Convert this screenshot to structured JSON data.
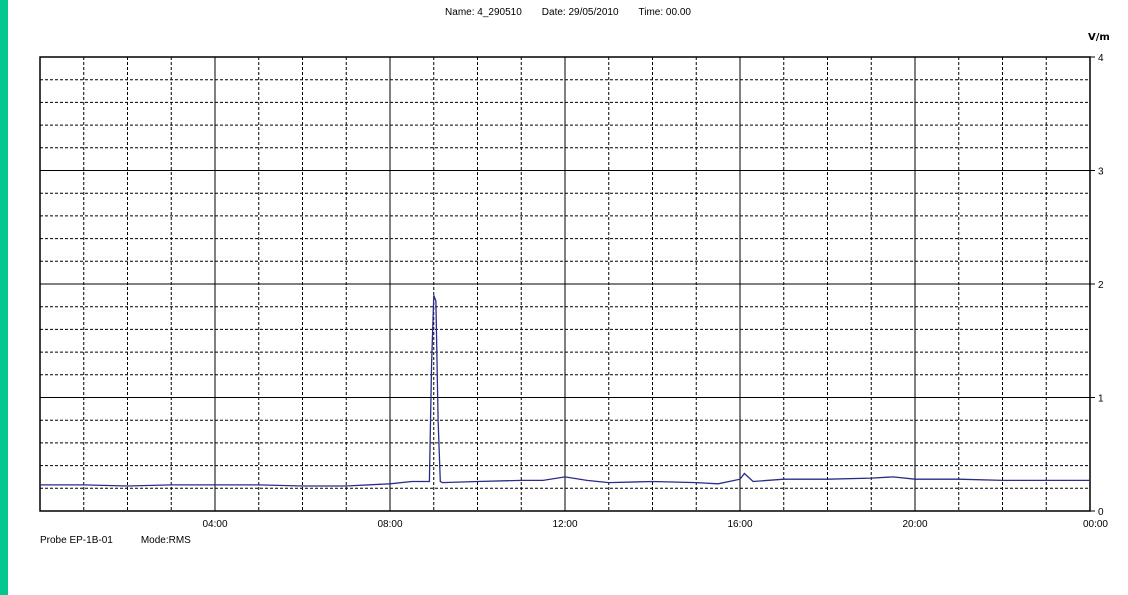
{
  "header": {
    "name": "Name: 4_290510",
    "date": "Date: 29/05/2010",
    "time": "Time: 00.00"
  },
  "footer": {
    "probe": "Probe EP-1B-01",
    "mode": "Mode:RMS"
  },
  "chart_data": {
    "type": "line",
    "title": "",
    "xlabel": "",
    "ylabel": "V/m",
    "xlim_hours": [
      0,
      24
    ],
    "ylim": [
      0,
      4
    ],
    "x_ticks": [
      "04:00",
      "08:00",
      "12:00",
      "16:00",
      "20:00",
      "00:00"
    ],
    "y_ticks": [
      "0",
      "1",
      "2",
      "3",
      "4"
    ],
    "grid": true,
    "series": [
      {
        "color": "#2b2b8a",
        "x_hours": [
          0,
          1,
          2,
          3,
          4,
          5,
          6,
          7,
          8,
          8.5,
          8.9,
          8.95,
          9.0,
          9.05,
          9.1,
          9.15,
          9.2,
          10,
          11,
          11.5,
          12,
          12.5,
          13,
          14,
          15,
          15.5,
          16,
          16.1,
          16.3,
          17,
          18,
          19,
          19.5,
          20,
          21,
          22,
          23,
          24
        ],
        "values": [
          0.23,
          0.23,
          0.22,
          0.23,
          0.23,
          0.23,
          0.22,
          0.22,
          0.24,
          0.26,
          0.26,
          1.3,
          1.9,
          1.85,
          0.8,
          0.26,
          0.25,
          0.26,
          0.27,
          0.27,
          0.3,
          0.27,
          0.25,
          0.26,
          0.25,
          0.24,
          0.28,
          0.33,
          0.26,
          0.28,
          0.28,
          0.29,
          0.3,
          0.28,
          0.28,
          0.27,
          0.27,
          0.27
        ]
      }
    ]
  }
}
